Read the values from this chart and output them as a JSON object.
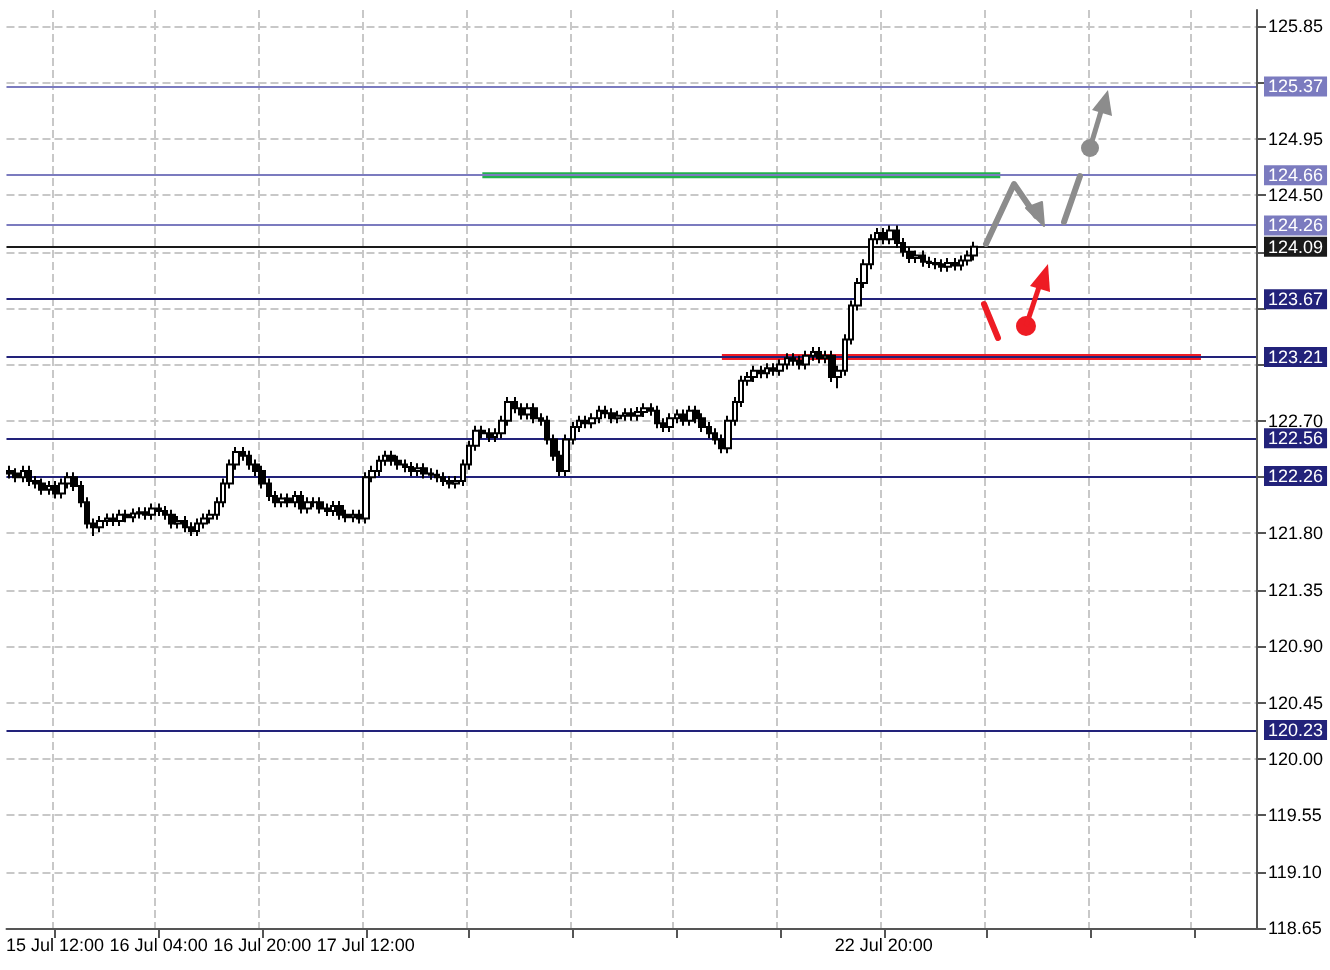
{
  "chart_data": {
    "type": "candlestick",
    "categories": [
      null,
      null,
      null,
      null,
      null,
      null,
      null,
      "15 Jul 12:00",
      null,
      null,
      null,
      null,
      null,
      null,
      null,
      null,
      null,
      null,
      null,
      null,
      null,
      null,
      null,
      "16 Jul 04:00",
      null,
      null,
      null,
      null,
      null,
      null,
      null,
      null,
      null,
      null,
      null,
      null,
      null,
      null,
      null,
      "16 Jul 20:00",
      null,
      null,
      null,
      null,
      null,
      null,
      null,
      null,
      null,
      null,
      null,
      null,
      null,
      null,
      null,
      "17 Jul 12:00",
      null,
      null,
      null,
      null,
      null,
      null,
      null,
      null,
      null,
      null,
      null,
      null,
      null,
      null,
      null,
      null,
      null,
      null,
      null,
      null,
      null,
      null,
      null,
      null,
      null,
      null,
      null,
      null,
      null,
      null,
      null,
      null,
      null,
      null,
      null,
      null,
      null,
      null,
      null,
      null,
      null,
      null,
      null,
      null,
      null,
      null,
      null,
      null,
      null,
      null,
      null,
      null,
      null,
      null,
      null,
      null,
      null,
      null,
      null,
      null,
      null,
      null,
      null,
      null,
      null,
      null,
      null,
      null,
      null,
      null,
      null,
      null,
      null,
      null,
      null,
      null,
      null,
      null,
      null,
      "22 Jul 20:00",
      null,
      null,
      null,
      null,
      null,
      null,
      null,
      null,
      null,
      null,
      null,
      null,
      null,
      null,
      null,
      null,
      null,
      null,
      null,
      null,
      null,
      null,
      null,
      null,
      null,
      null,
      null,
      null,
      null,
      null,
      null,
      null,
      null,
      null,
      null,
      null,
      null,
      null,
      null,
      null,
      null,
      null,
      null,
      null,
      null,
      null,
      null,
      null,
      null,
      null,
      null,
      null,
      null,
      null,
      null,
      null,
      null
    ],
    "ohlc": [
      [
        122.3,
        122.34,
        122.24,
        122.28
      ],
      [
        122.28,
        122.32,
        122.21,
        122.25
      ],
      [
        122.25,
        122.34,
        122.21,
        122.3
      ],
      [
        122.3,
        122.34,
        122.18,
        122.22
      ],
      [
        122.22,
        122.26,
        122.16,
        122.2
      ],
      [
        122.2,
        122.24,
        122.11,
        122.15
      ],
      [
        122.15,
        122.22,
        122.11,
        122.18
      ],
      [
        122.18,
        122.22,
        122.08,
        122.12
      ],
      [
        122.12,
        122.24,
        122.08,
        122.2
      ],
      [
        122.2,
        122.29,
        122.16,
        122.25
      ],
      [
        122.25,
        122.29,
        122.14,
        122.18
      ],
      [
        122.18,
        122.22,
        122.01,
        122.05
      ],
      [
        122.05,
        122.09,
        121.84,
        121.88
      ],
      [
        121.88,
        121.92,
        121.78,
        121.85
      ],
      [
        121.85,
        121.94,
        121.81,
        121.9
      ],
      [
        121.9,
        121.96,
        121.86,
        121.92
      ],
      [
        121.92,
        121.96,
        121.86,
        121.9
      ],
      [
        121.9,
        121.99,
        121.86,
        121.95
      ],
      [
        121.95,
        121.99,
        121.89,
        121.93
      ],
      [
        121.93,
        122.0,
        121.89,
        121.96
      ],
      [
        121.96,
        122.01,
        121.92,
        121.97
      ],
      [
        121.97,
        122.01,
        121.91,
        121.95
      ],
      [
        121.95,
        122.04,
        121.91,
        122.0
      ],
      [
        122.0,
        122.04,
        121.94,
        121.98
      ],
      [
        121.98,
        122.02,
        121.91,
        121.95
      ],
      [
        121.95,
        121.99,
        121.84,
        121.88
      ],
      [
        121.88,
        121.94,
        121.84,
        121.9
      ],
      [
        121.9,
        121.94,
        121.81,
        121.85
      ],
      [
        121.85,
        121.89,
        121.78,
        121.82
      ],
      [
        121.82,
        121.92,
        121.78,
        121.88
      ],
      [
        121.88,
        121.96,
        121.84,
        121.92
      ],
      [
        121.92,
        121.99,
        121.88,
        121.95
      ],
      [
        121.95,
        122.09,
        121.91,
        122.05
      ],
      [
        122.05,
        122.24,
        122.01,
        122.2
      ],
      [
        122.2,
        122.39,
        122.16,
        122.35
      ],
      [
        122.35,
        122.49,
        122.31,
        122.45
      ],
      [
        122.45,
        122.49,
        122.38,
        122.42
      ],
      [
        122.42,
        122.46,
        122.31,
        122.35
      ],
      [
        122.35,
        122.39,
        122.26,
        122.3
      ],
      [
        122.3,
        122.34,
        122.16,
        122.2
      ],
      [
        122.2,
        122.24,
        122.06,
        122.1
      ],
      [
        122.1,
        122.14,
        122.01,
        122.05
      ],
      [
        122.05,
        122.12,
        122.01,
        122.08
      ],
      [
        122.08,
        122.12,
        122.01,
        122.05
      ],
      [
        122.05,
        122.14,
        122.01,
        122.1
      ],
      [
        122.1,
        122.14,
        121.96,
        122.0
      ],
      [
        122.0,
        122.09,
        121.96,
        122.05
      ],
      [
        122.05,
        122.09,
        122.01,
        122.05
      ],
      [
        122.05,
        122.09,
        121.96,
        122.0
      ],
      [
        122.0,
        122.04,
        121.94,
        121.98
      ],
      [
        121.98,
        122.06,
        121.94,
        122.02
      ],
      [
        122.02,
        122.06,
        121.91,
        121.95
      ],
      [
        121.95,
        121.99,
        121.89,
        121.93
      ],
      [
        121.93,
        121.99,
        121.89,
        121.95
      ],
      [
        121.95,
        121.99,
        121.88,
        121.92
      ],
      [
        121.92,
        122.29,
        121.88,
        122.25
      ],
      [
        122.25,
        122.34,
        122.21,
        122.3
      ],
      [
        122.3,
        122.42,
        122.26,
        122.38
      ],
      [
        122.38,
        122.46,
        122.34,
        122.42
      ],
      [
        122.42,
        122.46,
        122.34,
        122.38
      ],
      [
        122.38,
        122.42,
        122.31,
        122.35
      ],
      [
        122.35,
        122.39,
        122.29,
        122.33
      ],
      [
        122.33,
        122.37,
        122.26,
        122.3
      ],
      [
        122.3,
        122.36,
        122.26,
        122.32
      ],
      [
        122.32,
        122.36,
        122.24,
        122.28
      ],
      [
        122.28,
        122.32,
        122.23,
        122.27
      ],
      [
        122.27,
        122.31,
        122.21,
        122.25
      ],
      [
        122.25,
        122.29,
        122.18,
        122.22
      ],
      [
        122.22,
        122.26,
        122.16,
        122.2
      ],
      [
        122.2,
        122.26,
        122.16,
        122.22
      ],
      [
        122.22,
        122.39,
        122.18,
        122.35
      ],
      [
        122.35,
        122.54,
        122.31,
        122.5
      ],
      [
        122.5,
        122.66,
        122.46,
        122.62
      ],
      [
        122.62,
        122.66,
        122.56,
        122.6
      ],
      [
        122.6,
        122.64,
        122.53,
        122.57
      ],
      [
        122.57,
        122.64,
        122.53,
        122.6
      ],
      [
        122.6,
        122.74,
        122.56,
        122.7
      ],
      [
        122.7,
        122.89,
        122.66,
        122.85
      ],
      [
        122.85,
        122.89,
        122.76,
        122.8
      ],
      [
        122.8,
        122.84,
        122.71,
        122.75
      ],
      [
        122.75,
        122.84,
        122.71,
        122.8
      ],
      [
        122.8,
        122.84,
        122.68,
        122.72
      ],
      [
        122.72,
        122.76,
        122.66,
        122.7
      ],
      [
        122.7,
        122.74,
        122.51,
        122.55
      ],
      [
        122.55,
        122.59,
        122.38,
        122.42
      ],
      [
        122.42,
        122.46,
        122.26,
        122.3
      ],
      [
        122.3,
        122.59,
        122.26,
        122.55
      ],
      [
        122.55,
        122.69,
        122.51,
        122.65
      ],
      [
        122.65,
        122.74,
        122.61,
        122.7
      ],
      [
        122.7,
        122.74,
        122.64,
        122.68
      ],
      [
        122.68,
        122.76,
        122.64,
        122.72
      ],
      [
        122.72,
        122.82,
        122.68,
        122.78
      ],
      [
        122.78,
        122.82,
        122.72,
        122.76
      ],
      [
        122.76,
        122.8,
        122.68,
        122.72
      ],
      [
        122.72,
        122.78,
        122.68,
        122.74
      ],
      [
        122.74,
        122.8,
        122.7,
        122.76
      ],
      [
        122.76,
        122.8,
        122.7,
        122.74
      ],
      [
        122.74,
        122.81,
        122.7,
        122.77
      ],
      [
        122.77,
        122.84,
        122.73,
        122.8
      ],
      [
        122.8,
        122.84,
        122.74,
        122.78
      ],
      [
        122.78,
        122.82,
        122.64,
        122.68
      ],
      [
        122.68,
        122.72,
        122.61,
        122.65
      ],
      [
        122.65,
        122.76,
        122.61,
        122.72
      ],
      [
        122.72,
        122.79,
        122.68,
        122.75
      ],
      [
        122.75,
        122.79,
        122.66,
        122.7
      ],
      [
        122.7,
        122.82,
        122.66,
        122.78
      ],
      [
        122.78,
        122.82,
        122.68,
        122.72
      ],
      [
        122.72,
        122.76,
        122.61,
        122.65
      ],
      [
        122.65,
        122.69,
        122.56,
        122.6
      ],
      [
        122.6,
        122.64,
        122.51,
        122.55
      ],
      [
        122.55,
        122.59,
        122.44,
        122.48
      ],
      [
        122.48,
        122.74,
        122.44,
        122.7
      ],
      [
        122.7,
        122.89,
        122.66,
        122.85
      ],
      [
        122.85,
        123.06,
        122.81,
        123.02
      ],
      [
        123.02,
        123.09,
        122.98,
        123.05
      ],
      [
        123.05,
        123.14,
        123.01,
        123.1
      ],
      [
        123.1,
        123.14,
        123.04,
        123.08
      ],
      [
        123.08,
        123.16,
        123.04,
        123.12
      ],
      [
        123.12,
        123.16,
        123.06,
        123.1
      ],
      [
        123.1,
        123.19,
        123.06,
        123.15
      ],
      [
        123.15,
        123.24,
        123.11,
        123.2
      ],
      [
        123.2,
        123.24,
        123.14,
        123.18
      ],
      [
        123.18,
        123.22,
        123.11,
        123.15
      ],
      [
        123.15,
        123.26,
        123.11,
        123.22
      ],
      [
        123.22,
        123.29,
        123.18,
        123.25
      ],
      [
        123.25,
        123.29,
        123.16,
        123.2
      ],
      [
        123.2,
        123.26,
        123.16,
        123.22
      ],
      [
        123.22,
        123.26,
        123.01,
        123.05
      ],
      [
        123.05,
        123.14,
        122.96,
        123.1
      ],
      [
        123.1,
        123.39,
        123.06,
        123.35
      ],
      [
        123.35,
        123.66,
        123.31,
        123.62
      ],
      [
        123.62,
        123.84,
        123.58,
        123.8
      ],
      [
        123.8,
        123.99,
        123.76,
        123.95
      ],
      [
        123.95,
        124.19,
        123.91,
        124.15
      ],
      [
        124.15,
        124.24,
        124.11,
        124.2
      ],
      [
        124.2,
        124.24,
        124.11,
        124.15
      ],
      [
        124.15,
        124.26,
        124.11,
        124.22
      ],
      [
        124.22,
        124.26,
        124.08,
        124.12
      ],
      [
        124.12,
        124.16,
        124.01,
        124.05
      ],
      [
        124.05,
        124.09,
        123.96,
        124.0
      ],
      [
        124.0,
        124.06,
        123.96,
        124.02
      ],
      [
        124.02,
        124.06,
        123.93,
        123.97
      ],
      [
        123.97,
        124.01,
        123.92,
        123.96
      ],
      [
        123.96,
        124.0,
        123.91,
        123.95
      ],
      [
        123.95,
        123.99,
        123.89,
        123.93
      ],
      [
        123.93,
        124.0,
        123.89,
        123.96
      ],
      [
        123.96,
        124.0,
        123.9,
        123.94
      ],
      [
        123.94,
        124.02,
        123.9,
        123.98
      ],
      [
        123.98,
        124.06,
        123.94,
        124.02
      ],
      [
        124.02,
        124.13,
        123.98,
        124.09
      ],
      null,
      null,
      null,
      null,
      null,
      null,
      null,
      null,
      null,
      null,
      null,
      null,
      null,
      null,
      null,
      null,
      null,
      null,
      null,
      null,
      null,
      null,
      null,
      null,
      null,
      null,
      null,
      null,
      null,
      null,
      null,
      null,
      null,
      null,
      null,
      null,
      null,
      null,
      null,
      null,
      null,
      null,
      null
    ],
    "series": [
      {
        "type": "line",
        "color": "#22b14c",
        "values": [
          null,
          null,
          null,
          null,
          null,
          null,
          null,
          null,
          null,
          null,
          null,
          null,
          null,
          null,
          null,
          null,
          null,
          null,
          null,
          null,
          null,
          null,
          null,
          null,
          null,
          null,
          null,
          null,
          null,
          null,
          null,
          null,
          null,
          null,
          null,
          null,
          null,
          null,
          null,
          null,
          null,
          null,
          null,
          null,
          null,
          null,
          null,
          null,
          null,
          null,
          null,
          null,
          null,
          null,
          null,
          null,
          null,
          null,
          null,
          null,
          null,
          null,
          null,
          null,
          null,
          null,
          null,
          null,
          null,
          null,
          null,
          null,
          null,
          124.66,
          124.66,
          124.66,
          124.66,
          124.66,
          124.66,
          124.66,
          124.66,
          124.66,
          124.66,
          124.66,
          124.66,
          124.66,
          124.66,
          124.66,
          124.66,
          124.66,
          124.66,
          124.66,
          124.66,
          124.66,
          124.66,
          124.66,
          124.66,
          124.66,
          124.66,
          124.66,
          124.66,
          124.66,
          124.66,
          124.66,
          124.66,
          124.66,
          124.66,
          124.66,
          124.66,
          124.66,
          124.66,
          124.66,
          124.66,
          124.66,
          124.66,
          124.66,
          124.66,
          124.66,
          124.66,
          124.66,
          124.66,
          124.66,
          124.66,
          124.66,
          124.66,
          124.66,
          124.66,
          124.66,
          124.66,
          124.66,
          124.66,
          124.66,
          124.66,
          124.66,
          124.66,
          124.66,
          124.66,
          124.66,
          124.66,
          124.66,
          124.66,
          124.66,
          124.66,
          124.66,
          124.66,
          124.66,
          124.66,
          124.66,
          124.66,
          124.66,
          124.66,
          124.66,
          124.66,
          124.66,
          null,
          null,
          null,
          null,
          null,
          null,
          null,
          null,
          null,
          null,
          null,
          null,
          null,
          null,
          null,
          null,
          null,
          null,
          null,
          null,
          null,
          null,
          null,
          null,
          null,
          null,
          null,
          null,
          null,
          null,
          null,
          null,
          null,
          null,
          null,
          null,
          null,
          null,
          null
        ]
      },
      {
        "type": "line",
        "color": "#ee1c24",
        "values": [
          null,
          null,
          null,
          null,
          null,
          null,
          null,
          null,
          null,
          null,
          null,
          null,
          null,
          null,
          null,
          null,
          null,
          null,
          null,
          null,
          null,
          null,
          null,
          null,
          null,
          null,
          null,
          null,
          null,
          null,
          null,
          null,
          null,
          null,
          null,
          null,
          null,
          null,
          null,
          null,
          null,
          null,
          null,
          null,
          null,
          null,
          null,
          null,
          null,
          null,
          null,
          null,
          null,
          null,
          null,
          null,
          null,
          null,
          null,
          null,
          null,
          null,
          null,
          null,
          null,
          null,
          null,
          null,
          null,
          null,
          null,
          null,
          null,
          null,
          null,
          null,
          null,
          null,
          null,
          null,
          null,
          null,
          null,
          null,
          null,
          null,
          null,
          null,
          null,
          null,
          null,
          null,
          null,
          null,
          null,
          null,
          null,
          null,
          null,
          null,
          null,
          null,
          null,
          null,
          null,
          null,
          null,
          null,
          null,
          null,
          123.21,
          123.21,
          123.21,
          123.21,
          123.21,
          123.21,
          123.21,
          123.21,
          123.21,
          123.21,
          123.21,
          123.21,
          123.21,
          123.21,
          123.21,
          123.21,
          123.21,
          123.21,
          123.21,
          123.21,
          123.21,
          123.21,
          123.21,
          123.21,
          123.21,
          123.21,
          123.21,
          123.21,
          123.21,
          123.21,
          123.21,
          123.21,
          123.21,
          123.21,
          123.21,
          123.21,
          123.21,
          123.21,
          123.21,
          123.21,
          123.21,
          123.21,
          123.21,
          123.21,
          123.21,
          123.21,
          123.21,
          123.21,
          123.21,
          123.21,
          123.21,
          123.21,
          123.21,
          123.21,
          123.21,
          123.21,
          123.21,
          123.21,
          123.21,
          123.21,
          123.21,
          123.21,
          123.21,
          123.21,
          123.21,
          123.21,
          123.21,
          123.21,
          123.21,
          123.21,
          123.21,
          123.21,
          123.21,
          123.21,
          123.21,
          null,
          null,
          null,
          null,
          null,
          null,
          null,
          null
        ]
      }
    ],
    "ylim": [
      118.65,
      125.98
    ],
    "yticks": [
      118.65,
      {
        "value": 119.1,
        "label": "119.10"
      },
      119.55,
      {
        "value": 120.0,
        "label": "120.00"
      },
      120.45,
      {
        "value": 120.9,
        "label": "120.90"
      },
      121.35,
      {
        "value": 121.8,
        "label": "121.80"
      },
      {
        "value": 122.25,
        "label": null
      },
      {
        "value": 122.7,
        "label": "122.70"
      },
      {
        "value": 123.15,
        "label": null
      },
      {
        "value": 123.6,
        "label": null
      },
      {
        "value": 124.05,
        "label": null
      },
      {
        "value": 124.5,
        "label": "124.50"
      },
      124.95,
      {
        "value": 125.4,
        "label": null
      },
      125.85
    ],
    "grid": true,
    "ref_lines": [
      {
        "axis": "y",
        "value": 125.37,
        "label": "125.37",
        "color": "#7b7bbf"
      },
      {
        "axis": "y",
        "value": 124.66,
        "label": "124.66",
        "color": "#7b7bbf"
      },
      {
        "axis": "y",
        "value": 124.26,
        "label": "124.26",
        "color": "#7b7bbf"
      },
      {
        "axis": "y",
        "value": 124.09,
        "label": "124.09",
        "color": "#1a1a1a"
      },
      {
        "axis": "y",
        "value": 123.67,
        "label": "123.67",
        "color": "#22227a"
      },
      {
        "axis": "y",
        "value": 123.21,
        "label": "123.21",
        "color": "#22227a"
      },
      {
        "axis": "y",
        "value": 122.56,
        "label": "122.56",
        "color": "#22227a"
      },
      {
        "axis": "y",
        "value": 122.26,
        "label": "122.26",
        "color": "#22227a"
      },
      {
        "axis": "y",
        "value": 120.23,
        "label": "120.23",
        "color": "#22227a"
      }
    ]
  }
}
